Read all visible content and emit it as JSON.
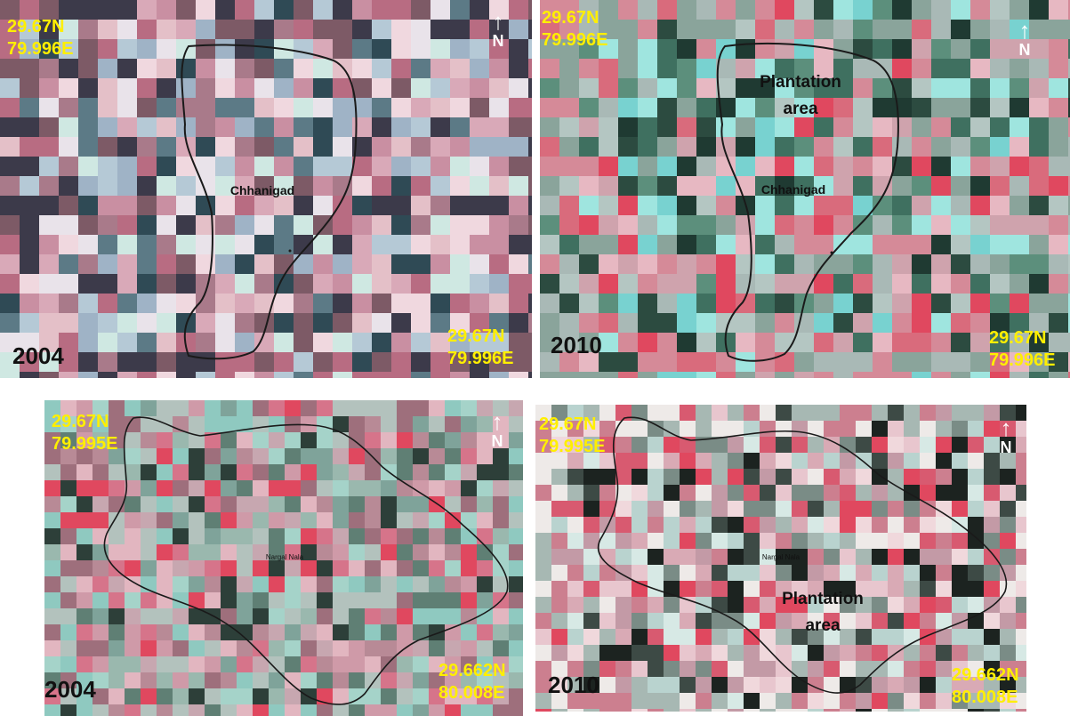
{
  "panels": [
    {
      "id": "p1",
      "year": "2004",
      "coord_top": "29.67N\n79.996E",
      "coord_bottom": "29.67N\n79.996E",
      "north_arrow": "↑",
      "north_label": "N",
      "place_label": "Chhanigad",
      "plantation_label": ""
    },
    {
      "id": "p2",
      "year": "2010",
      "coord_top": "29.67N\n79.996E",
      "coord_bottom": "29.67N\n79.996E",
      "north_arrow": "↑",
      "north_label": "N",
      "place_label": "Chhanigad",
      "plantation_label": "Plantation\narea"
    },
    {
      "id": "p3",
      "year": "2004",
      "coord_top": "29.67N\n79.995E",
      "coord_bottom": "29.662N\n80.008E",
      "north_arrow": "↑",
      "north_label": "N",
      "place_label": "Nargal Nala",
      "plantation_label": ""
    },
    {
      "id": "p4",
      "year": "2010",
      "coord_top": "29.67N\n79.995E",
      "coord_bottom": "29.662N\n80.008E",
      "north_arrow": "↑",
      "north_label": "N",
      "place_label": "Nargal Nala",
      "plantation_label": "Plantation\narea"
    }
  ],
  "colors": {
    "coordinate_text": "#ffef00",
    "boundary_line": "#1a1a1a",
    "vegetation_red": "#e0485f",
    "cyan_soil": "#9fe5df",
    "dark_forest": "#1f4a3c"
  }
}
